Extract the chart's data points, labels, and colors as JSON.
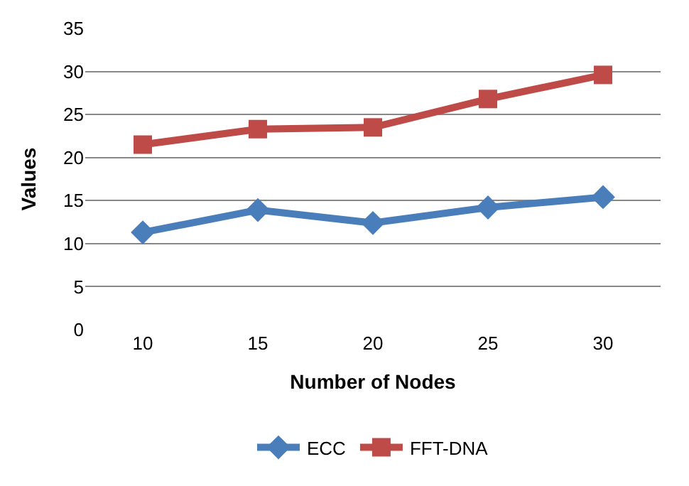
{
  "chart_data": {
    "type": "line",
    "xlabel": "Number of Nodes",
    "ylabel": "Values",
    "categories": [
      "10",
      "15",
      "20",
      "25",
      "30"
    ],
    "ylim": [
      0,
      35
    ],
    "yticks": [
      0,
      5,
      10,
      15,
      20,
      25,
      30,
      35
    ],
    "grid": "y",
    "legend": "bottom",
    "series": [
      {
        "name": "ECC",
        "color": "#4a7ebb",
        "marker": "diamond",
        "values": [
          11.3,
          13.9,
          12.4,
          14.2,
          15.4
        ]
      },
      {
        "name": "FFT-DNA",
        "color": "#be4b48",
        "marker": "square",
        "values": [
          21.5,
          23.3,
          23.5,
          26.8,
          29.6
        ]
      }
    ]
  }
}
